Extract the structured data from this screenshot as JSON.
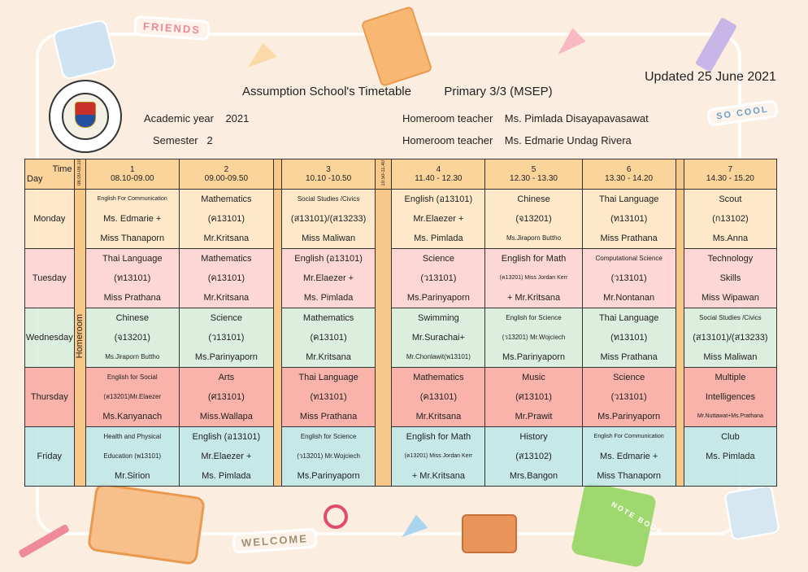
{
  "title": "Assumption School's Timetable",
  "class_label": "Primary  3/3 (MSEP)",
  "updated": "Updated 25 June 2021",
  "academic_year_label": "Academic year",
  "academic_year": "2021",
  "semester_label": "Semester",
  "semester": "2",
  "homeroom_label_1": "Homeroom teacher",
  "homeroom_teacher_1": "Ms. Pimlada  Disayapavasawat",
  "homeroom_label_2": "Homeroom teacher",
  "homeroom_teacher_2": "Ms. Edmarie Undag Rivera",
  "stickers": {
    "friends": "FRIENDS",
    "so_cool": "SO COOL",
    "welcome": "WELCOME",
    "notebook": "NOTE BOOK"
  },
  "header": {
    "time": "Time",
    "day": "Day",
    "homeroom_time": "08.00-08.10",
    "break_time": "10.50-11.40",
    "homeroom": "Homeroom",
    "periods": [
      {
        "num": "1",
        "time": "08.10-09.00"
      },
      {
        "num": "2",
        "time": "09.00-09.50"
      },
      {
        "num": "3",
        "time": "10.10 -10.50"
      },
      {
        "num": "4",
        "time": "11.40  -  12.30"
      },
      {
        "num": "5",
        "time": "12.30  -  13.30"
      },
      {
        "num": "6",
        "time": "13.30 - 14.20"
      },
      {
        "num": "7",
        "time": "14.30 - 15.20"
      }
    ]
  },
  "days": [
    {
      "name": "Monday",
      "periods": [
        [
          "English For Communication",
          "Ms. Edmarie +",
          "Miss Thanaporn"
        ],
        [
          "Mathematics",
          "(ค13101)",
          "Mr.Kritsana"
        ],
        [
          "Social Studies /Civics",
          "(ส13101)/(ส13233)",
          "Miss Maliwan"
        ],
        [
          "English (อ13101)",
          "Mr.Elaezer +",
          "Ms. Pimlada"
        ],
        [
          "Chinese",
          "(จ13201)",
          "Ms.Jiraporn  Buttho"
        ],
        [
          "Thai Language",
          "(ท13101)",
          "Miss Prathana"
        ],
        [
          "Scout",
          "(ก13102)",
          "Ms.Anna"
        ]
      ]
    },
    {
      "name": "Tuesday",
      "periods": [
        [
          "Thai Language",
          "(ท13101)",
          "Miss Prathana"
        ],
        [
          "Mathematics",
          "(ค13101)",
          "Mr.Kritsana"
        ],
        [
          "English (อ13101)",
          "Mr.Elaezer +",
          "Ms. Pimlada"
        ],
        [
          "Science",
          "(ว13101)",
          "Ms.Parinyaporn"
        ],
        [
          "English for Math",
          "(ค13201)  Miss Jordan  Kerr",
          "+ Mr.Kritsana"
        ],
        [
          "Computational Science",
          "(ว13101)",
          "Mr.Nontanan"
        ],
        [
          "Technology",
          "Skills",
          "Miss Wipawan"
        ]
      ]
    },
    {
      "name": "Wednesday",
      "periods": [
        [
          "Chinese",
          "(จ13201)",
          "Ms.Jiraporn  Buttho"
        ],
        [
          "Science",
          "(ว13101)",
          "Ms.Parinyaporn"
        ],
        [
          "Mathematics",
          "(ค13101)",
          "Mr.Kritsana"
        ],
        [
          "Swimming",
          "Mr.Surachai+",
          "Mr.Chonlawit(พ13101)"
        ],
        [
          "English for  Science",
          "(ว13201) Mr.Wojciech",
          "Ms.Parinyaporn"
        ],
        [
          "Thai Language",
          "(ท13101)",
          "Miss Prathana"
        ],
        [
          "Social Studies /Civics",
          "(ส13101)/(ส13233)",
          "Miss Maliwan"
        ]
      ]
    },
    {
      "name": "Thursday",
      "periods": [
        [
          "English for Social",
          "(ส13201)Mr.Elaezer",
          "Ms.Kanyanach"
        ],
        [
          "Arts",
          "(ศ13101)",
          "Miss.Wallapa"
        ],
        [
          "Thai Language",
          "(ท13101)",
          "Miss Prathana"
        ],
        [
          "Mathematics",
          "(ค13101)",
          "Mr.Kritsana"
        ],
        [
          "Music",
          "(ศ13101)",
          "Mr.Prawit"
        ],
        [
          "Science",
          "(ว13101)",
          "Ms.Parinyaporn"
        ],
        [
          "Multiple",
          "Intelligences",
          "Mr.Nuttawat+Ms.Prathana"
        ]
      ]
    },
    {
      "name": "Friday",
      "periods": [
        [
          "Health and Physical",
          "Education (พ13101)",
          "Mr.Sirion"
        ],
        [
          "English (อ13101)",
          "Mr.Elaezer +",
          "Ms. Pimlada"
        ],
        [
          "English for  Science",
          "(ว13201) Mr.Wojciech",
          "Ms.Parinyaporn"
        ],
        [
          "English for Math",
          "(ค13201)  Miss Jordan  Kerr",
          "+ Mr.Kritsana"
        ],
        [
          "History",
          "(ส13102)",
          "Mrs.Bangon"
        ],
        [
          "English For Communication",
          "Ms. Edmarie +",
          "Miss Thanaporn"
        ],
        [
          "Club",
          "Ms. Pimlada",
          ""
        ]
      ]
    }
  ]
}
